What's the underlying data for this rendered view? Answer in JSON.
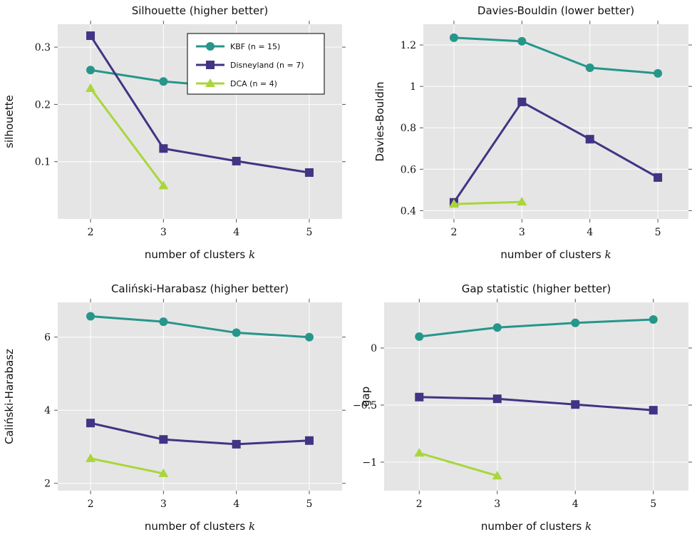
{
  "legend": {
    "entries": [
      {
        "series": "KBF",
        "label": "KBF (n = 15)",
        "color": "#26968a",
        "marker": "circle"
      },
      {
        "series": "Disneyland",
        "label": "Disneyland (n = 7)",
        "color": "#433384",
        "marker": "square"
      },
      {
        "series": "DCA",
        "label": "DCA (n = 4)",
        "color": "#a9d63b",
        "marker": "triangle"
      }
    ],
    "placement": "top-right of first panel"
  },
  "chart_data": [
    {
      "type": "line",
      "title": "Silhouette (higher better)",
      "xlabel": "number of clusters k",
      "ylabel": "silhouette",
      "x": [
        2,
        3,
        4,
        5
      ],
      "xlim": [
        1.55,
        5.45
      ],
      "ylim": [
        0.0,
        0.34
      ],
      "yticks": [
        0.1,
        0.2,
        0.3
      ],
      "ytick_labels": [
        "0.1",
        "0.2",
        "0.3"
      ],
      "grid": true,
      "series": [
        {
          "name": "KBF",
          "color": "#26968a",
          "marker": "circle",
          "x": [
            2,
            3,
            4,
            5
          ],
          "values": [
            0.26,
            0.24,
            0.23,
            0.23
          ]
        },
        {
          "name": "Disneyland",
          "color": "#433384",
          "marker": "square",
          "x": [
            2,
            3,
            4,
            5
          ],
          "values": [
            0.32,
            0.123,
            0.101,
            0.081
          ]
        },
        {
          "name": "DCA",
          "color": "#a9d63b",
          "marker": "triangle",
          "x": [
            2,
            3
          ],
          "values": [
            0.228,
            0.058
          ]
        }
      ]
    },
    {
      "type": "line",
      "title": "Davies-Bouldin (lower better)",
      "xlabel": "number of clusters k",
      "ylabel": "Davies-Bouldin",
      "x": [
        2,
        3,
        4,
        5
      ],
      "xlim": [
        1.55,
        5.45
      ],
      "ylim": [
        0.36,
        1.3
      ],
      "yticks": [
        0.4,
        0.6,
        0.8,
        1.0,
        1.2
      ],
      "ytick_labels": [
        "0.4",
        "0.6",
        "0.8",
        "1",
        "1.2"
      ],
      "grid": true,
      "series": [
        {
          "name": "KBF",
          "color": "#26968a",
          "marker": "circle",
          "x": [
            2,
            3,
            4,
            5
          ],
          "values": [
            1.235,
            1.218,
            1.09,
            1.063
          ]
        },
        {
          "name": "Disneyland",
          "color": "#433384",
          "marker": "square",
          "x": [
            2,
            3,
            4,
            5
          ],
          "values": [
            0.44,
            0.925,
            0.745,
            0.56
          ]
        },
        {
          "name": "DCA",
          "color": "#a9d63b",
          "marker": "triangle",
          "x": [
            2,
            3
          ],
          "values": [
            0.432,
            0.442
          ]
        }
      ]
    },
    {
      "type": "line",
      "title": "Caliński-Harabasz (higher better)",
      "xlabel": "number of clusters k",
      "ylabel": "Caliński-Harabasz",
      "x": [
        2,
        3,
        4,
        5
      ],
      "xlim": [
        1.55,
        5.45
      ],
      "ylim": [
        1.8,
        6.95
      ],
      "yticks": [
        2,
        4,
        6
      ],
      "ytick_labels": [
        "2",
        "4",
        "6"
      ],
      "grid": true,
      "series": [
        {
          "name": "KBF",
          "color": "#26968a",
          "marker": "circle",
          "x": [
            2,
            3,
            4,
            5
          ],
          "values": [
            6.57,
            6.42,
            6.12,
            6.0
          ]
        },
        {
          "name": "Disneyland",
          "color": "#433384",
          "marker": "square",
          "x": [
            2,
            3,
            4,
            5
          ],
          "values": [
            3.65,
            3.2,
            3.07,
            3.17
          ]
        },
        {
          "name": "DCA",
          "color": "#a9d63b",
          "marker": "triangle",
          "x": [
            2,
            3
          ],
          "values": [
            2.68,
            2.27
          ]
        }
      ]
    },
    {
      "type": "line",
      "title": "Gap statistic (higher better)",
      "xlabel": "number of clusters k",
      "ylabel": "gap",
      "x": [
        2,
        3,
        4,
        5
      ],
      "xlim": [
        1.55,
        5.45
      ],
      "ylim": [
        -1.25,
        0.4
      ],
      "yticks": [
        -1,
        -0.5,
        0
      ],
      "ytick_labels": [
        "−1",
        "−0.5",
        "0"
      ],
      "grid": true,
      "series": [
        {
          "name": "KBF",
          "color": "#26968a",
          "marker": "circle",
          "x": [
            2,
            3,
            4,
            5
          ],
          "values": [
            0.1,
            0.18,
            0.22,
            0.25
          ]
        },
        {
          "name": "Disneyland",
          "color": "#433384",
          "marker": "square",
          "x": [
            2,
            3,
            4,
            5
          ],
          "values": [
            -0.43,
            -0.445,
            -0.495,
            -0.545
          ]
        },
        {
          "name": "DCA",
          "color": "#a9d63b",
          "marker": "triangle",
          "x": [
            2,
            3
          ],
          "values": [
            -0.92,
            -1.12
          ]
        }
      ]
    }
  ]
}
